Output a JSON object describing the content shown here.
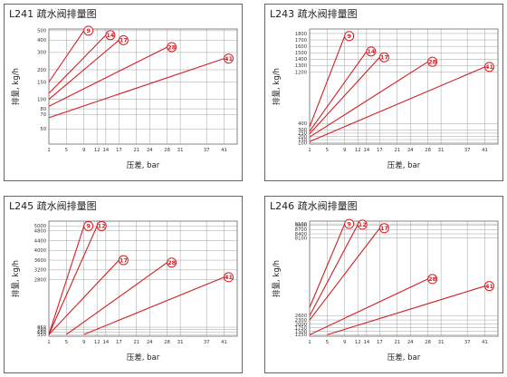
{
  "chart_data": [
    {
      "type": "line",
      "title": "L241 疏水阀排量图",
      "xlabel": "压差, bar",
      "ylabel": "排量, kg/h",
      "x_ticks": [
        1,
        5,
        9,
        12,
        14,
        17,
        21,
        24,
        28,
        31,
        37,
        41
      ],
      "y_ticks": [
        50,
        70,
        80,
        100,
        150,
        200,
        300,
        400,
        500
      ],
      "xlim": [
        1,
        44
      ],
      "ylim": [
        35,
        520
      ],
      "y_scale": "log",
      "grid": true,
      "series": [
        {
          "name": "9",
          "x": [
            1,
            9
          ],
          "y": [
            150,
            500
          ]
        },
        {
          "name": "14",
          "x": [
            1,
            14
          ],
          "y": [
            115,
            450
          ]
        },
        {
          "name": "17",
          "x": [
            1,
            17
          ],
          "y": [
            100,
            400
          ]
        },
        {
          "name": "28",
          "x": [
            1,
            28
          ],
          "y": [
            85,
            340
          ]
        },
        {
          "name": "41",
          "x": [
            1,
            41
          ],
          "y": [
            65,
            260
          ]
        }
      ]
    },
    {
      "type": "line",
      "title": "L243 疏水阀排量图",
      "xlabel": "压差, bar",
      "ylabel": "排量, kg/h",
      "x_ticks": [
        1,
        5,
        9,
        12,
        14,
        17,
        21,
        24,
        28,
        31,
        37,
        41
      ],
      "y_ticks": [
        100,
        150,
        200,
        250,
        300,
        400,
        1200,
        1300,
        1400,
        1500,
        1600,
        1700,
        1800
      ],
      "xlim": [
        1,
        44
      ],
      "ylim": [
        80,
        1870
      ],
      "grid": true,
      "series": [
        {
          "name": "9",
          "x": [
            1,
            9
          ],
          "y": [
            350,
            1760
          ]
        },
        {
          "name": "14",
          "x": [
            1,
            14
          ],
          "y": [
            280,
            1520
          ]
        },
        {
          "name": "17",
          "x": [
            1,
            17
          ],
          "y": [
            240,
            1430
          ]
        },
        {
          "name": "28",
          "x": [
            1,
            28
          ],
          "y": [
            190,
            1360
          ]
        },
        {
          "name": "41",
          "x": [
            1,
            41
          ],
          "y": [
            120,
            1280
          ]
        }
      ]
    },
    {
      "type": "line",
      "title": "L245 疏水阀排量图",
      "xlabel": "压差, bar",
      "ylabel": "排量, kg/h",
      "x_ticks": [
        1,
        5,
        9,
        12,
        14,
        17,
        21,
        24,
        28,
        31,
        37,
        41
      ],
      "y_ticks": [
        550,
        650,
        750,
        850,
        2800,
        3200,
        3600,
        4000,
        4400,
        4800,
        5000
      ],
      "xlim": [
        1,
        44
      ],
      "ylim": [
        480,
        5200
      ],
      "grid": true,
      "series": [
        {
          "name": "9",
          "x": [
            1,
            9
          ],
          "y": [
            550,
            5000
          ]
        },
        {
          "name": "12",
          "x": [
            1,
            12
          ],
          "y": [
            550,
            5000
          ]
        },
        {
          "name": "17",
          "x": [
            1,
            17
          ],
          "y": [
            550,
            3600
          ]
        },
        {
          "name": "28",
          "x": [
            5,
            28
          ],
          "y": [
            550,
            3500
          ]
        },
        {
          "name": "41",
          "x": [
            9,
            41
          ],
          "y": [
            550,
            2900
          ]
        }
      ]
    },
    {
      "type": "line",
      "title": "L246 疏水阀排量图",
      "xlabel": "压差, bar",
      "ylabel": "排量, kg/h",
      "x_ticks": [
        1,
        5,
        9,
        12,
        14,
        17,
        21,
        24,
        28,
        31,
        37,
        41
      ],
      "y_ticks": [
        1250,
        1500,
        1750,
        2000,
        2300,
        2600,
        8100,
        8400,
        8700,
        9000,
        9100
      ],
      "xlim": [
        1,
        44
      ],
      "ylim": [
        1150,
        9300
      ],
      "grid": true,
      "series": [
        {
          "name": "9",
          "x": [
            1,
            9
          ],
          "y": [
            3200,
            9100
          ]
        },
        {
          "name": "12",
          "x": [
            1,
            12
          ],
          "y": [
            2600,
            9050
          ]
        },
        {
          "name": "17",
          "x": [
            1,
            17
          ],
          "y": [
            2300,
            8800
          ]
        },
        {
          "name": "28",
          "x": [
            1,
            28
          ],
          "y": [
            1250,
            5200
          ]
        },
        {
          "name": "41",
          "x": [
            5,
            41
          ],
          "y": [
            1250,
            4700
          ]
        }
      ]
    }
  ],
  "colors": {
    "series_line": "#d21f24",
    "grid": "#8a8a8a",
    "frame": "#666666"
  }
}
